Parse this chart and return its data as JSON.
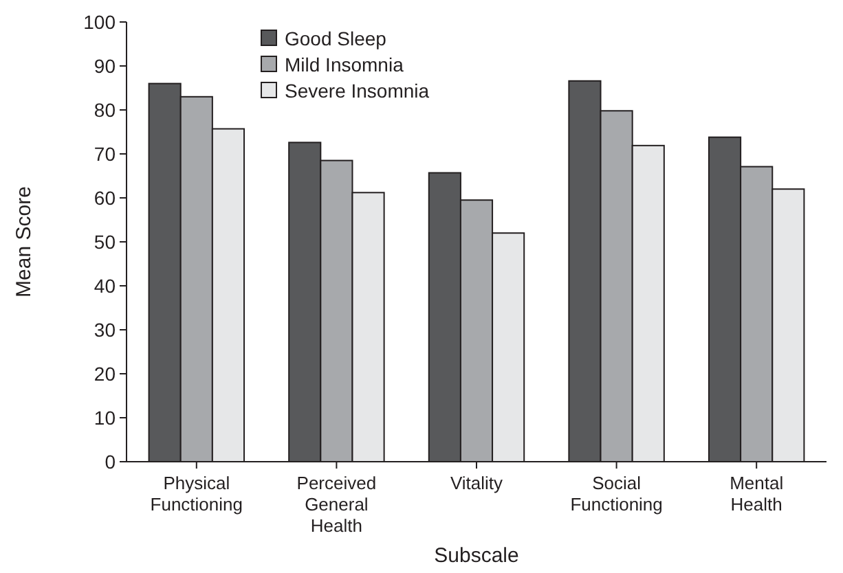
{
  "chart_data": {
    "type": "bar",
    "xlabel": "Subscale",
    "ylabel": "Mean Score",
    "categories": [
      "Physical Functioning",
      "Perceived General Health",
      "Vitality",
      "Social Functioning",
      "Mental Health"
    ],
    "series": [
      {
        "name": "Good Sleep",
        "color": "#58595b",
        "values": [
          86,
          72.6,
          65.7,
          86.6,
          73.8
        ]
      },
      {
        "name": "Mild Insomnia",
        "color": "#a7a9ac",
        "values": [
          83,
          68.5,
          59.5,
          79.8,
          67.1
        ]
      },
      {
        "name": "Severe Insomnia",
        "color": "#e6e7e8",
        "values": [
          75.7,
          61.2,
          52,
          71.9,
          62
        ]
      }
    ],
    "ylim": [
      0,
      100
    ],
    "yticks": [
      0,
      10,
      20,
      30,
      40,
      50,
      60,
      70,
      80,
      90,
      100
    ],
    "grid": false,
    "legend": "top left"
  }
}
